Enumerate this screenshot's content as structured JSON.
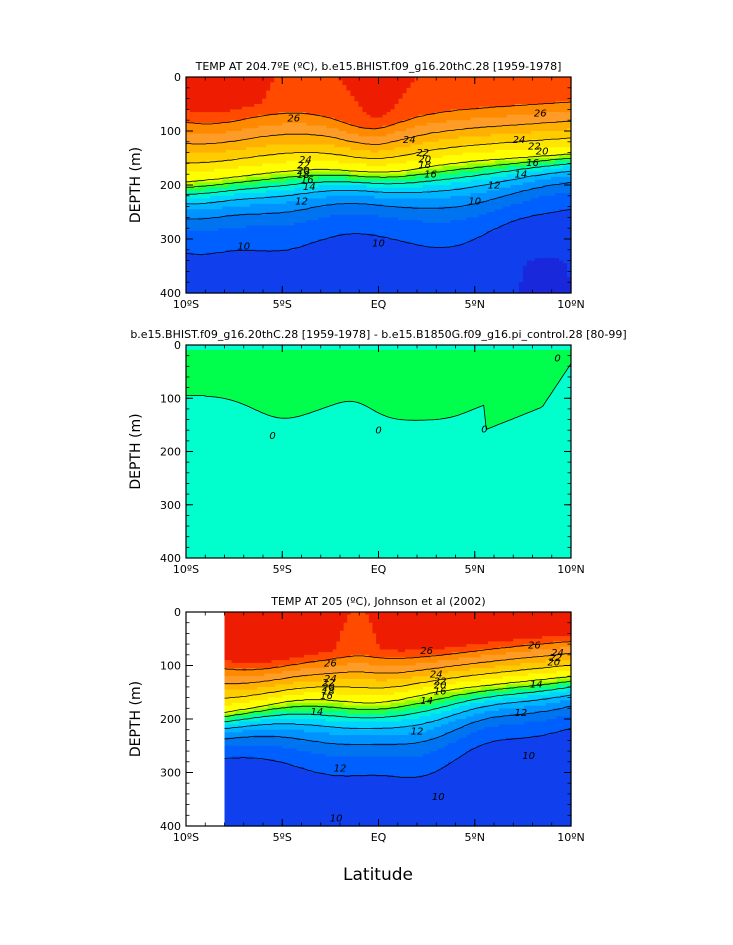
{
  "figure": {
    "xlabel": "Latitude"
  },
  "chart_data": [
    {
      "type": "contour",
      "title": "TEMP AT 204.7ºE (ºC), b.e15.BHIST.f09_g16.20thC.28 [1959-1978]",
      "ylabel": "DEPTH (m)",
      "xlabel": "",
      "x_range": [
        -10,
        10
      ],
      "y_range": [
        0,
        400
      ],
      "y_inverted": true,
      "x_tick_values": [
        -10,
        -5,
        0,
        5,
        10
      ],
      "x_tick_labels": [
        "10ºS",
        "5ºS",
        "EQ",
        "5ºN",
        "10ºN"
      ],
      "y_ticks": [
        0,
        100,
        200,
        300,
        400
      ],
      "contour_labels": [
        {
          "value": "26",
          "x": -4.4,
          "y": 76
        },
        {
          "value": "26",
          "x": 8.4,
          "y": 67
        },
        {
          "value": "24",
          "x": 1.6,
          "y": 116
        },
        {
          "value": "24",
          "x": 7.3,
          "y": 116
        },
        {
          "value": "24",
          "x": -3.8,
          "y": 153
        },
        {
          "value": "22",
          "x": 2.3,
          "y": 140
        },
        {
          "value": "22",
          "x": 8.1,
          "y": 128
        },
        {
          "value": "22",
          "x": -3.9,
          "y": 163
        },
        {
          "value": "20",
          "x": 2.4,
          "y": 152
        },
        {
          "value": "20",
          "x": 8.5,
          "y": 137
        },
        {
          "value": "20",
          "x": -3.9,
          "y": 173
        },
        {
          "value": "18",
          "x": 2.4,
          "y": 162
        },
        {
          "value": "18",
          "x": -3.9,
          "y": 181
        },
        {
          "value": "16",
          "x": 2.7,
          "y": 180
        },
        {
          "value": "16",
          "x": 8.0,
          "y": 158
        },
        {
          "value": "16",
          "x": -3.7,
          "y": 190
        },
        {
          "value": "14",
          "x": 7.4,
          "y": 180
        },
        {
          "value": "14",
          "x": -3.6,
          "y": 203
        },
        {
          "value": "12",
          "x": 6.0,
          "y": 200
        },
        {
          "value": "12",
          "x": -4.0,
          "y": 230
        },
        {
          "value": "10",
          "x": 5.0,
          "y": 230
        },
        {
          "value": "10",
          "x": 0.0,
          "y": 307
        },
        {
          "value": "10",
          "x": -7.0,
          "y": 313
        }
      ]
    },
    {
      "type": "contour",
      "title": "b.e15.BHIST.f09_g16.20thC.28 [1959-1978] - b.e15.B1850G.f09_g16.pi_control.28 [80-99]",
      "ylabel": "DEPTH (m)",
      "xlabel": "",
      "x_range": [
        -10,
        10
      ],
      "y_range": [
        0,
        400
      ],
      "y_inverted": true,
      "x_tick_values": [
        -10,
        -5,
        0,
        5,
        10
      ],
      "x_tick_labels": [
        "10ºS",
        "5ºS",
        "EQ",
        "5ºN",
        "10ºN"
      ],
      "y_ticks": [
        0,
        100,
        200,
        300,
        400
      ],
      "contour_labels": [
        {
          "value": "0",
          "x": -5.5,
          "y": 170
        },
        {
          "value": "0",
          "x": 0.0,
          "y": 160
        },
        {
          "value": "0",
          "x": 5.5,
          "y": 158
        },
        {
          "value": "0",
          "x": 9.3,
          "y": 24
        }
      ]
    },
    {
      "type": "contour",
      "title": "TEMP AT 205 (ºC), Johnson et al (2002)",
      "ylabel": "DEPTH (m)",
      "xlabel": "Latitude",
      "x_range": [
        -10,
        10
      ],
      "y_range": [
        0,
        400
      ],
      "y_inverted": true,
      "x_tick_values": [
        -10,
        -5,
        0,
        5,
        10
      ],
      "x_tick_labels": [
        "10ºS",
        "5ºS",
        "EQ",
        "5ºN",
        "10ºN"
      ],
      "y_ticks": [
        0,
        100,
        200,
        300,
        400
      ],
      "data_x_start": -8,
      "contour_labels": [
        {
          "value": "26",
          "x": -2.5,
          "y": 95
        },
        {
          "value": "26",
          "x": 2.5,
          "y": 72
        },
        {
          "value": "26",
          "x": 8.1,
          "y": 62
        },
        {
          "value": "24",
          "x": -2.5,
          "y": 124
        },
        {
          "value": "24",
          "x": 3.0,
          "y": 116
        },
        {
          "value": "24",
          "x": 9.3,
          "y": 76
        },
        {
          "value": "22",
          "x": -2.6,
          "y": 132
        },
        {
          "value": "22",
          "x": 3.2,
          "y": 129
        },
        {
          "value": "22",
          "x": 9.2,
          "y": 85
        },
        {
          "value": "20",
          "x": -2.6,
          "y": 140
        },
        {
          "value": "20",
          "x": 3.2,
          "y": 136
        },
        {
          "value": "20",
          "x": 9.1,
          "y": 93
        },
        {
          "value": "18",
          "x": -2.6,
          "y": 148
        },
        {
          "value": "16",
          "x": 3.2,
          "y": 148
        },
        {
          "value": "16",
          "x": -2.7,
          "y": 156
        },
        {
          "value": "14",
          "x": -3.2,
          "y": 186
        },
        {
          "value": "14",
          "x": 2.5,
          "y": 165
        },
        {
          "value": "14",
          "x": 8.2,
          "y": 135
        },
        {
          "value": "12",
          "x": 2.0,
          "y": 222
        },
        {
          "value": "12",
          "x": 7.4,
          "y": 188
        },
        {
          "value": "12",
          "x": -2.0,
          "y": 292
        },
        {
          "value": "10",
          "x": 7.8,
          "y": 268
        },
        {
          "value": "10",
          "x": 3.1,
          "y": 345
        },
        {
          "value": "10",
          "x": -2.2,
          "y": 385
        }
      ]
    }
  ]
}
